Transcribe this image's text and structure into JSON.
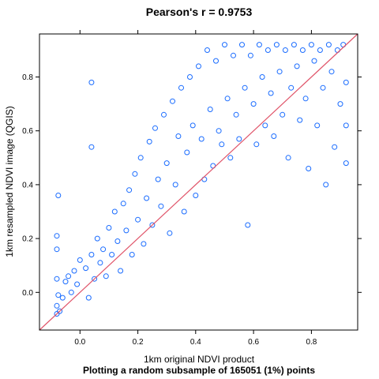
{
  "chart_data": {
    "type": "scatter",
    "title": "Pearson's r = 0.9753",
    "xlabel": "1km original NDVI product",
    "ylabel": "1km resampled NDVI image (QGIS)",
    "subtitle": "Plotting a random subsample of 165051 (1%) points",
    "xlim": [
      -0.14,
      0.96
    ],
    "ylim": [
      -0.14,
      0.96
    ],
    "x_ticks": [
      0.0,
      0.2,
      0.4,
      0.6,
      0.8
    ],
    "x_tick_labels": [
      "0.0",
      "0.2",
      "0.4",
      "0.6",
      "0.8"
    ],
    "y_ticks": [
      0.0,
      0.2,
      0.4,
      0.6,
      0.8
    ],
    "y_tick_labels": [
      "0.0",
      "0.2",
      "0.4",
      "0.6",
      "0.8"
    ],
    "grid": false,
    "legend": "none",
    "point_color": "#1a6cff",
    "line_color": "#e0556a",
    "reference_line": {
      "slope": 1,
      "intercept": 0
    },
    "points": [
      [
        -0.08,
        -0.08
      ],
      [
        -0.08,
        -0.05
      ],
      [
        -0.075,
        -0.01
      ],
      [
        -0.08,
        0.05
      ],
      [
        -0.08,
        0.21
      ],
      [
        -0.075,
        0.36
      ],
      [
        -0.08,
        0.16
      ],
      [
        -0.07,
        -0.07
      ],
      [
        -0.06,
        -0.02
      ],
      [
        -0.05,
        0.04
      ],
      [
        -0.04,
        0.06
      ],
      [
        -0.03,
        0.0
      ],
      [
        -0.02,
        0.08
      ],
      [
        -0.01,
        0.03
      ],
      [
        0.0,
        0.12
      ],
      [
        0.02,
        0.09
      ],
      [
        0.03,
        -0.02
      ],
      [
        0.04,
        0.14
      ],
      [
        0.04,
        0.78
      ],
      [
        0.04,
        0.54
      ],
      [
        0.05,
        0.05
      ],
      [
        0.06,
        0.2
      ],
      [
        0.07,
        0.11
      ],
      [
        0.08,
        0.16
      ],
      [
        0.09,
        0.06
      ],
      [
        0.1,
        0.24
      ],
      [
        0.11,
        0.14
      ],
      [
        0.12,
        0.3
      ],
      [
        0.13,
        0.19
      ],
      [
        0.14,
        0.08
      ],
      [
        0.15,
        0.33
      ],
      [
        0.16,
        0.23
      ],
      [
        0.17,
        0.38
      ],
      [
        0.18,
        0.14
      ],
      [
        0.19,
        0.44
      ],
      [
        0.2,
        0.27
      ],
      [
        0.21,
        0.5
      ],
      [
        0.22,
        0.18
      ],
      [
        0.23,
        0.35
      ],
      [
        0.24,
        0.56
      ],
      [
        0.25,
        0.25
      ],
      [
        0.26,
        0.61
      ],
      [
        0.27,
        0.42
      ],
      [
        0.28,
        0.32
      ],
      [
        0.29,
        0.66
      ],
      [
        0.3,
        0.48
      ],
      [
        0.31,
        0.22
      ],
      [
        0.32,
        0.71
      ],
      [
        0.33,
        0.4
      ],
      [
        0.34,
        0.58
      ],
      [
        0.35,
        0.76
      ],
      [
        0.36,
        0.3
      ],
      [
        0.37,
        0.52
      ],
      [
        0.38,
        0.8
      ],
      [
        0.39,
        0.62
      ],
      [
        0.4,
        0.36
      ],
      [
        0.41,
        0.84
      ],
      [
        0.42,
        0.57
      ],
      [
        0.43,
        0.42
      ],
      [
        0.44,
        0.9
      ],
      [
        0.45,
        0.68
      ],
      [
        0.46,
        0.47
      ],
      [
        0.47,
        0.86
      ],
      [
        0.48,
        0.6
      ],
      [
        0.49,
        0.55
      ],
      [
        0.5,
        0.92
      ],
      [
        0.51,
        0.72
      ],
      [
        0.52,
        0.5
      ],
      [
        0.53,
        0.88
      ],
      [
        0.54,
        0.66
      ],
      [
        0.55,
        0.57
      ],
      [
        0.56,
        0.92
      ],
      [
        0.57,
        0.76
      ],
      [
        0.58,
        0.25
      ],
      [
        0.59,
        0.88
      ],
      [
        0.6,
        0.7
      ],
      [
        0.61,
        0.55
      ],
      [
        0.62,
        0.92
      ],
      [
        0.63,
        0.8
      ],
      [
        0.64,
        0.62
      ],
      [
        0.65,
        0.9
      ],
      [
        0.66,
        0.74
      ],
      [
        0.67,
        0.58
      ],
      [
        0.68,
        0.92
      ],
      [
        0.69,
        0.82
      ],
      [
        0.7,
        0.66
      ],
      [
        0.71,
        0.9
      ],
      [
        0.72,
        0.5
      ],
      [
        0.73,
        0.76
      ],
      [
        0.74,
        0.92
      ],
      [
        0.75,
        0.84
      ],
      [
        0.76,
        0.64
      ],
      [
        0.77,
        0.9
      ],
      [
        0.78,
        0.72
      ],
      [
        0.79,
        0.46
      ],
      [
        0.8,
        0.92
      ],
      [
        0.81,
        0.86
      ],
      [
        0.82,
        0.62
      ],
      [
        0.83,
        0.9
      ],
      [
        0.84,
        0.76
      ],
      [
        0.85,
        0.4
      ],
      [
        0.86,
        0.92
      ],
      [
        0.87,
        0.82
      ],
      [
        0.88,
        0.54
      ],
      [
        0.89,
        0.9
      ],
      [
        0.9,
        0.7
      ],
      [
        0.91,
        0.92
      ],
      [
        0.92,
        0.48
      ],
      [
        0.92,
        0.62
      ],
      [
        0.92,
        0.78
      ]
    ]
  }
}
